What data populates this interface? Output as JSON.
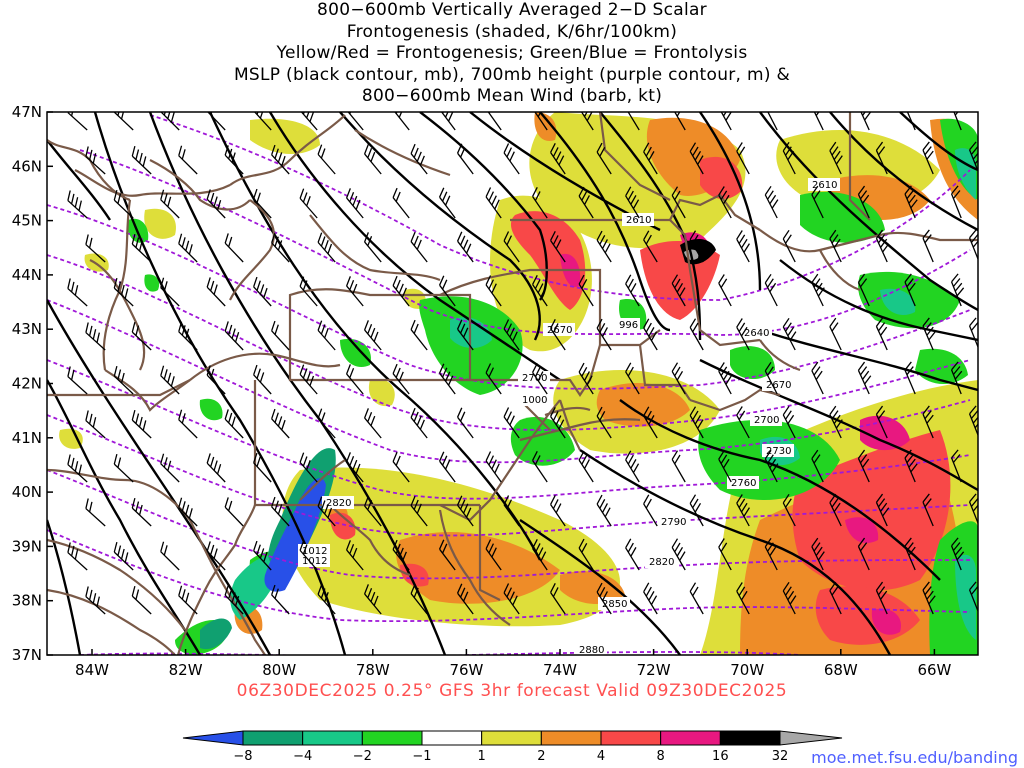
{
  "title": {
    "line1": "800−600mb Vertically Averaged 2−D Scalar",
    "line2": "Frontogenesis (shaded, K/6hr/100km)",
    "line3": "Yellow/Red = Frontogenesis;  Green/Blue = Frontolysis",
    "line4": "MSLP (black contour, mb), 700mb height (purple contour, m) &",
    "line5": "800−600mb Mean Wind (barb, kt)"
  },
  "axes": {
    "lat_labels": [
      "47N",
      "46N",
      "45N",
      "44N",
      "43N",
      "42N",
      "41N",
      "40N",
      "39N",
      "38N",
      "37N"
    ],
    "lon_labels": [
      "84W",
      "82W",
      "80W",
      "78W",
      "76W",
      "74W",
      "72W",
      "70W",
      "68W",
      "66W"
    ]
  },
  "contour_labels": {
    "height": [
      "2610",
      "2610",
      "2640",
      "2670",
      "2670",
      "2700",
      "2700",
      "2730",
      "2760",
      "2790",
      "2820",
      "2820",
      "2850",
      "2880"
    ],
    "mslp": [
      "996",
      "1000",
      "1012",
      "1012"
    ]
  },
  "valid_time": "06Z30DEC2025 0.25° GFS 3hr forecast Valid 09Z30DEC2025",
  "colorbar": {
    "tick_labels": [
      "−8",
      "−4",
      "−2",
      "−1",
      "1",
      "2",
      "4",
      "8",
      "16",
      "32"
    ],
    "colors": [
      "#2850e8",
      "#10a070",
      "#18c888",
      "#22d422",
      "#ffffff",
      "#dede3a",
      "#ee8c28",
      "#f84848",
      "#e81880",
      "#000000",
      "#a8a8a8"
    ]
  },
  "credit": "moe.met.fsu.edu/banding"
}
